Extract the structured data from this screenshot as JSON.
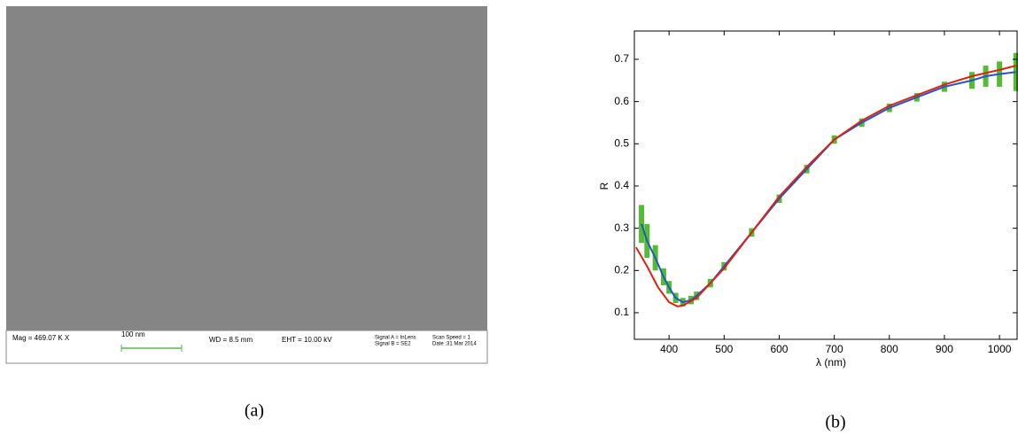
{
  "image_panel": {
    "mag": "Mag = 469.07 K X",
    "scale_bar": "100 nm",
    "wd": "WD =  8.5 mm",
    "eht": "EHT = 10.00 kV",
    "signal_a": "Signal A = InLens",
    "signal_b": "Signal B = SE2",
    "scan_speed": "Scan Speed = 1",
    "date": "Date :31 Mar 2014",
    "caption": "(a)"
  },
  "chart_data": {
    "type": "line",
    "caption": "(b)",
    "x_label": "λ (nm)",
    "y_label": "R",
    "xlim": [
      337,
      1032
    ],
    "ylim": [
      0.037,
      0.767
    ],
    "xticks": [
      400,
      500,
      600,
      700,
      800,
      900,
      1000
    ],
    "yticks": [
      0.1,
      0.2,
      0.3,
      0.4,
      0.5,
      0.6,
      0.7
    ],
    "grid": false,
    "series": [
      {
        "color": "#2255cc",
        "error_color": "#55bb33",
        "x": [
          350,
          360,
          375,
          390,
          400,
          412,
          425,
          440,
          450,
          475,
          500,
          550,
          600,
          650,
          700,
          750,
          800,
          850,
          900,
          950,
          975,
          1000,
          1030
        ],
        "values": [
          0.31,
          0.27,
          0.23,
          0.185,
          0.16,
          0.135,
          0.125,
          0.13,
          0.14,
          0.17,
          0.21,
          0.29,
          0.37,
          0.44,
          0.51,
          0.55,
          0.585,
          0.61,
          0.635,
          0.65,
          0.66,
          0.665,
          0.67
        ],
        "errors": [
          0.045,
          0.04,
          0.03,
          0.02,
          0.015,
          0.012,
          0.01,
          0.01,
          0.01,
          0.01,
          0.01,
          0.01,
          0.01,
          0.01,
          0.01,
          0.01,
          0.01,
          0.01,
          0.012,
          0.02,
          0.025,
          0.03,
          0.045
        ]
      },
      {
        "color": "#dd2211",
        "x": [
          340,
          360,
          380,
          400,
          415,
          425,
          450,
          500,
          550,
          600,
          650,
          700,
          750,
          800,
          850,
          900,
          950,
          1000,
          1030
        ],
        "values": [
          0.255,
          0.21,
          0.16,
          0.125,
          0.115,
          0.117,
          0.135,
          0.205,
          0.29,
          0.375,
          0.445,
          0.51,
          0.555,
          0.59,
          0.615,
          0.64,
          0.66,
          0.675,
          0.685
        ]
      }
    ]
  }
}
